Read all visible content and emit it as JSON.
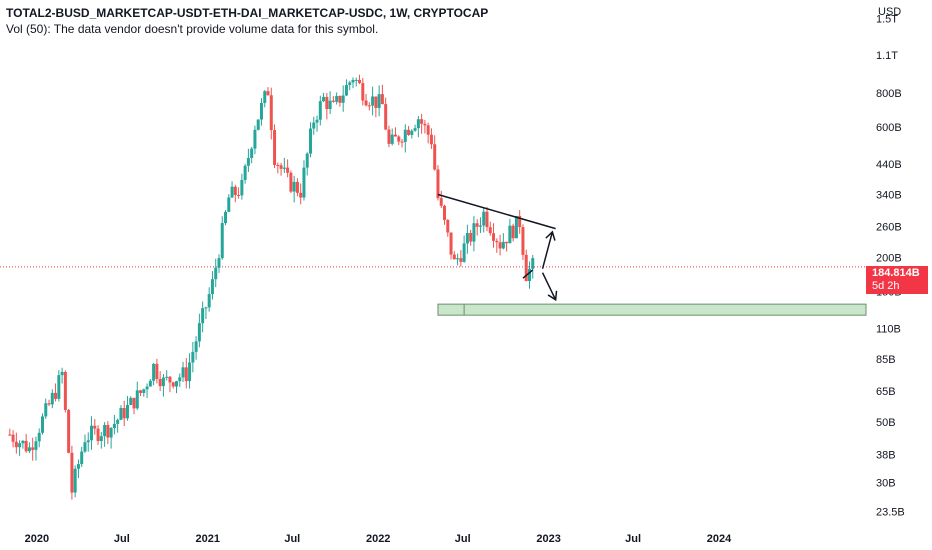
{
  "header": {
    "title": "TOTAL2-BUSD_MARKETCAP-USDT-ETH-DAI_MARKETCAP-USDC, 1W, CRYPTOCAP",
    "volume_note": "Vol (50): The data vendor doesn't provide volume data for this symbol."
  },
  "price_label": {
    "value": "184.814B",
    "countdown": "5d 2h",
    "color": "#f23645"
  },
  "colors": {
    "up": "#26a69a",
    "down": "#ef5350",
    "zone_fill": "#c8e6c9",
    "zone_stroke": "#4caf50"
  },
  "chart_data": {
    "type": "candlestick",
    "y_scale": "log",
    "y_unit": "USD",
    "ylim": [
      21,
      1750
    ],
    "y_ticks": [
      {
        "label": "1.5T",
        "value": 1500
      },
      {
        "label": "1.1T",
        "value": 1100
      },
      {
        "label": "800B",
        "value": 800
      },
      {
        "label": "600B",
        "value": 600
      },
      {
        "label": "440B",
        "value": 440
      },
      {
        "label": "340B",
        "value": 340
      },
      {
        "label": "260B",
        "value": 260
      },
      {
        "label": "200B",
        "value": 200
      },
      {
        "label": "150B",
        "value": 150
      },
      {
        "label": "110B",
        "value": 110
      },
      {
        "label": "85B",
        "value": 85
      },
      {
        "label": "65B",
        "value": 65
      },
      {
        "label": "50B",
        "value": 50
      },
      {
        "label": "38B",
        "value": 38
      },
      {
        "label": "30B",
        "value": 30
      },
      {
        "label": "23.5B",
        "value": 23.5
      }
    ],
    "xlim": [
      "2019-10-14",
      "2024-11-15"
    ],
    "x_ticks": [
      {
        "label": "2020",
        "date": "2020-01-01"
      },
      {
        "label": "Jul",
        "date": "2020-07-01"
      },
      {
        "label": "2021",
        "date": "2021-01-01"
      },
      {
        "label": "Jul",
        "date": "2021-07-01"
      },
      {
        "label": "2022",
        "date": "2022-01-01"
      },
      {
        "label": "Jul",
        "date": "2022-07-01"
      },
      {
        "label": "2023",
        "date": "2023-01-01"
      },
      {
        "label": "Jul",
        "date": "2023-07-01"
      },
      {
        "label": "2024",
        "date": "2024-01-01"
      }
    ],
    "current_price": 184.814,
    "series_anchors": [
      {
        "date": "2019-11-04",
        "value": 45
      },
      {
        "date": "2019-12-16",
        "value": 40
      },
      {
        "date": "2020-02-10",
        "value": 65
      },
      {
        "date": "2020-02-24",
        "value": 75
      },
      {
        "date": "2020-03-16",
        "value": 28
      },
      {
        "date": "2020-04-13",
        "value": 44
      },
      {
        "date": "2020-06-08",
        "value": 48
      },
      {
        "date": "2020-08-17",
        "value": 66
      },
      {
        "date": "2020-09-07",
        "value": 80
      },
      {
        "date": "2020-09-28",
        "value": 70
      },
      {
        "date": "2020-11-16",
        "value": 75
      },
      {
        "date": "2020-12-07",
        "value": 100
      },
      {
        "date": "2021-01-11",
        "value": 160
      },
      {
        "date": "2021-02-15",
        "value": 330
      },
      {
        "date": "2021-03-15",
        "value": 360
      },
      {
        "date": "2021-04-12",
        "value": 610
      },
      {
        "date": "2021-05-10",
        "value": 820
      },
      {
        "date": "2021-05-24",
        "value": 470
      },
      {
        "date": "2021-06-21",
        "value": 380
      },
      {
        "date": "2021-07-19",
        "value": 350
      },
      {
        "date": "2021-08-16",
        "value": 640
      },
      {
        "date": "2021-09-06",
        "value": 760
      },
      {
        "date": "2021-09-27",
        "value": 700
      },
      {
        "date": "2021-11-08",
        "value": 920
      },
      {
        "date": "2021-12-06",
        "value": 780
      },
      {
        "date": "2022-01-10",
        "value": 720
      },
      {
        "date": "2022-01-24",
        "value": 510
      },
      {
        "date": "2022-03-28",
        "value": 650
      },
      {
        "date": "2022-04-25",
        "value": 540
      },
      {
        "date": "2022-05-09",
        "value": 330
      },
      {
        "date": "2022-06-13",
        "value": 190
      },
      {
        "date": "2022-07-25",
        "value": 250
      },
      {
        "date": "2022-08-15",
        "value": 290
      },
      {
        "date": "2022-09-19",
        "value": 225
      },
      {
        "date": "2022-10-31",
        "value": 270
      },
      {
        "date": "2022-11-14",
        "value": 175
      },
      {
        "date": "2022-11-28",
        "value": 185
      }
    ],
    "drawings": {
      "trendline": {
        "from": {
          "date": "2022-05-09",
          "value": 340
        },
        "to": {
          "date": "2023-01-16",
          "value": 255
        }
      },
      "support_line": {
        "from": {
          "date": "2022-11-07",
          "value": 168
        },
        "to": {
          "date": "2022-11-28",
          "value": 180
        }
      },
      "arrow_up": {
        "from": {
          "date": "2022-12-19",
          "value": 182
        },
        "to": {
          "date": "2023-01-09",
          "value": 248
        }
      },
      "arrow_down": {
        "from": {
          "date": "2022-12-19",
          "value": 176
        },
        "to": {
          "date": "2023-01-16",
          "value": 140
        }
      },
      "zone": {
        "from_date": "2022-05-09",
        "to_date": "2024-11-15",
        "low": 123,
        "high": 135,
        "divider_date": "2022-07-04"
      }
    }
  }
}
